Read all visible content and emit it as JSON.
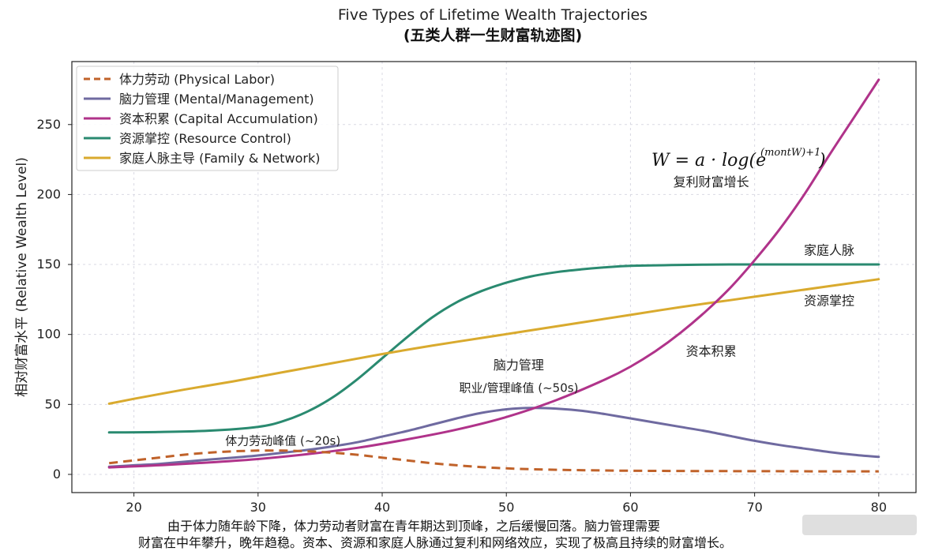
{
  "chart_data": {
    "type": "line",
    "title": "Five Types of Lifetime Wealth Trajectories",
    "subtitle": "(五类人群一生财富轨迹图)",
    "xlabel": "",
    "ylabel": "相对财富水平 (Relative Wealth Level)",
    "xlim": [
      15,
      83
    ],
    "ylim": [
      -13,
      295
    ],
    "xticks": [
      20,
      30,
      40,
      50,
      60,
      70,
      80
    ],
    "yticks": [
      0,
      50,
      100,
      150,
      200,
      250
    ],
    "grid": true,
    "legend_position": "top-left",
    "series": [
      {
        "name": "体力劳动 (Physical Labor)",
        "color": "#c0622a",
        "dash": "dashed",
        "x": [
          18,
          20,
          22,
          24,
          26,
          28,
          30,
          32,
          34,
          36,
          38,
          40,
          42,
          44,
          46,
          48,
          50,
          52,
          54,
          56,
          58,
          60,
          65,
          70,
          75,
          80
        ],
        "y": [
          8,
          10,
          12,
          14,
          15.5,
          16.5,
          17,
          17,
          16.5,
          15.5,
          14,
          12,
          10,
          8,
          6.5,
          5.2,
          4.3,
          3.7,
          3.3,
          3,
          2.8,
          2.6,
          2.4,
          2.3,
          2.2,
          2.2
        ]
      },
      {
        "name": "脑力管理 (Mental/Management)",
        "color": "#6f6aa0",
        "dash": "solid",
        "x": [
          18,
          20,
          22,
          24,
          26,
          28,
          30,
          32,
          34,
          36,
          38,
          40,
          42,
          44,
          46,
          48,
          50,
          52,
          54,
          56,
          58,
          60,
          62,
          64,
          66,
          68,
          70,
          72,
          74,
          76,
          78,
          80
        ],
        "y": [
          5.5,
          6.5,
          7.5,
          9,
          10.5,
          12,
          13.5,
          15.5,
          17.5,
          20,
          23,
          27,
          31,
          35.5,
          40,
          44,
          46.5,
          47.5,
          47,
          45.5,
          43,
          40,
          37,
          34,
          31,
          27.5,
          24,
          21,
          18.5,
          16,
          14,
          12.5
        ]
      },
      {
        "name": "资本积累 (Capital Accumulation)",
        "color": "#b0338a",
        "dash": "solid",
        "x": [
          18,
          22,
          26,
          30,
          34,
          38,
          42,
          46,
          50,
          54,
          58,
          60,
          62,
          64,
          66,
          68,
          70,
          72,
          74,
          76,
          78,
          80
        ],
        "y": [
          5,
          6.5,
          8.5,
          11,
          14.5,
          19,
          25,
          32,
          41,
          53,
          68,
          77,
          88,
          101,
          116,
          133,
          153,
          175,
          200,
          228,
          255,
          282
        ]
      },
      {
        "name": "资源掌控 (Resource Control)",
        "color": "#2a8a70",
        "dash": "solid",
        "x": [
          18,
          22,
          26,
          30,
          32,
          34,
          36,
          38,
          40,
          42,
          44,
          46,
          48,
          50,
          52,
          54,
          56,
          58,
          60,
          64,
          68,
          72,
          76,
          80
        ],
        "y": [
          30,
          30.3,
          31.2,
          34,
          38,
          45,
          55,
          68,
          83,
          98,
          112,
          123,
          131,
          137,
          141.5,
          144.5,
          146.5,
          148,
          149,
          149.7,
          150,
          150,
          150,
          150
        ]
      },
      {
        "name": "家庭人脉主导 (Family & Network)",
        "color": "#d9aa2e",
        "dash": "solid",
        "x": [
          18,
          20,
          24,
          28,
          32,
          36,
          40,
          44,
          48,
          52,
          56,
          60,
          64,
          68,
          72,
          76,
          80
        ],
        "y": [
          50.5,
          54,
          60.5,
          66.5,
          73,
          79.5,
          86,
          92,
          97.5,
          103,
          108.5,
          114,
          119.5,
          124.5,
          129.5,
          134.5,
          139.5
        ]
      }
    ],
    "annotations": [
      {
        "text": "体力劳动峰值 (~20s)",
        "x": 32,
        "y": 21
      },
      {
        "text": "脑力管理",
        "x": 51,
        "y": 75
      },
      {
        "text": "职业/管理峰值 (~50s)",
        "x": 51,
        "y": 59
      },
      {
        "text": "资本积累",
        "x": 66.5,
        "y": 85
      },
      {
        "text": "家庭人脉",
        "x": 76,
        "y": 157
      },
      {
        "text": "资源掌控",
        "x": 76,
        "y": 121
      },
      {
        "text": "复利财富增长",
        "x": 66.5,
        "y": 206
      }
    ],
    "formula": {
      "main": "W = a · log(e",
      "sup": "(montW)+1",
      "close": ")"
    }
  },
  "caption": {
    "line1": "由于体力随年龄下降，体力劳动者财富在青年期达到顶峰，之后缓慢回落。脑力管理需要",
    "line2": "财富在中年攀升，晚年趋稳。资本、资源和家庭人脉通过复利和网络效应，实现了极高且持续的财富增长。"
  }
}
